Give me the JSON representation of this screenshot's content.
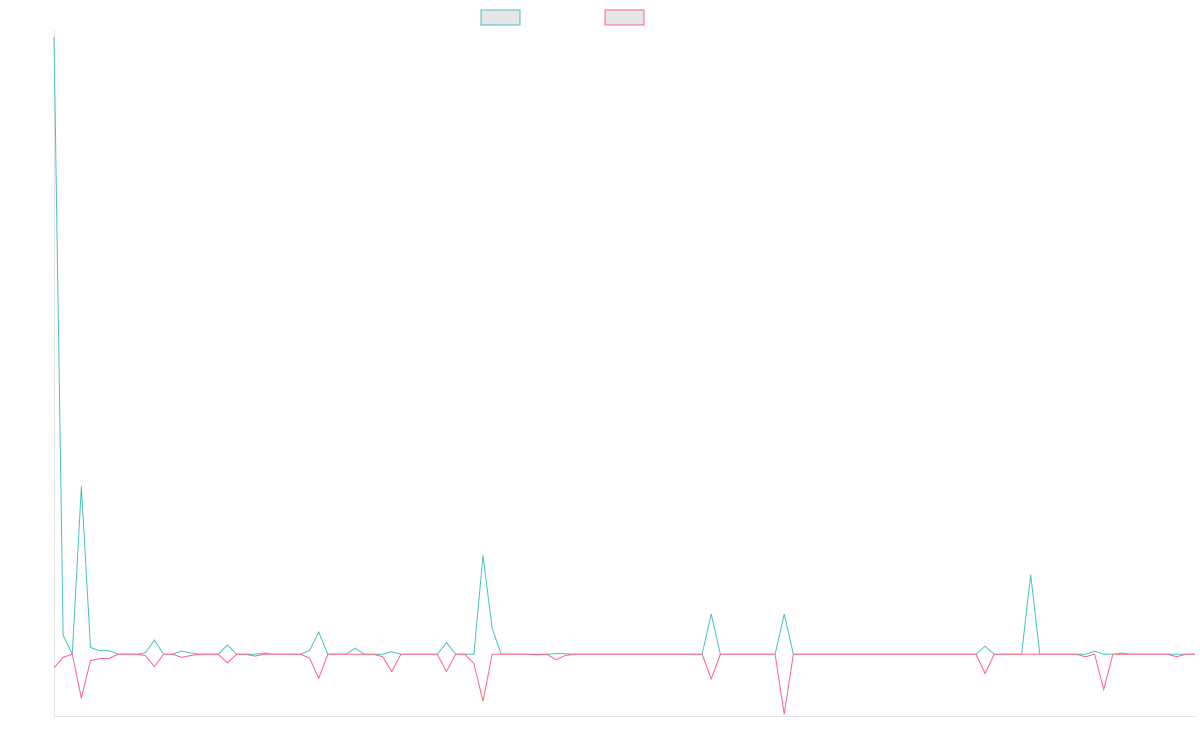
{
  "colors": {
    "series_1": "#4bc0c0",
    "series_2": "#ff6384",
    "legend_fill": "#e6e6e6",
    "axis": "#e4e4e4",
    "background": "#ffffff"
  },
  "legend": {
    "placement": "top-center"
  },
  "chart_data": {
    "type": "line",
    "title": "",
    "xlabel": "",
    "ylabel": "",
    "grid": false,
    "x": [
      0,
      1,
      2,
      3,
      4,
      5,
      6,
      7,
      8,
      9,
      10,
      11,
      12,
      13,
      14,
      15,
      16,
      17,
      18,
      19,
      20,
      21,
      22,
      23,
      24,
      25,
      26,
      27,
      28,
      29,
      30,
      31,
      32,
      33,
      34,
      35,
      36,
      37,
      38,
      39,
      40,
      41,
      42,
      43,
      44,
      45,
      46,
      47,
      48,
      49,
      50,
      51,
      52,
      53,
      54,
      55,
      56,
      57,
      58,
      59,
      60,
      61,
      62,
      63,
      64,
      65,
      66,
      67,
      68,
      69,
      70,
      71,
      72,
      73,
      74,
      75,
      76,
      77,
      78,
      79,
      80,
      81,
      82,
      83,
      84,
      85,
      86,
      87,
      88,
      89,
      90,
      91,
      92,
      93,
      94,
      95,
      96,
      97,
      98,
      99,
      100,
      101,
      102,
      103,
      104,
      105,
      106,
      107,
      108,
      109,
      110,
      111,
      112,
      113,
      114,
      115,
      116,
      117,
      118,
      119,
      120,
      121,
      122,
      123,
      124,
      125
    ],
    "ylim": [
      -100,
      1000
    ],
    "series": [
      {
        "color": "#4bc0c0",
        "values": [
          1000,
          31,
          0,
          272,
          11,
          6,
          6,
          0,
          0,
          0,
          2,
          23,
          0,
          0,
          5,
          2,
          0,
          0,
          0,
          15,
          0,
          0,
          0,
          2,
          0,
          0,
          0,
          0,
          6,
          36,
          0,
          0,
          0,
          10,
          0,
          0,
          0,
          4,
          0,
          0,
          0,
          0,
          0,
          19,
          0,
          0,
          0,
          160,
          42,
          0,
          0,
          0,
          0,
          0,
          0,
          1,
          1,
          0,
          0,
          0,
          0,
          0,
          0,
          0,
          0,
          0,
          0,
          0,
          0,
          0,
          0,
          0,
          65,
          0,
          0,
          0,
          0,
          0,
          0,
          0,
          65,
          0,
          0,
          0,
          0,
          0,
          0,
          0,
          0,
          0,
          0,
          0,
          0,
          0,
          0,
          0,
          0,
          0,
          0,
          0,
          0,
          0,
          13,
          0,
          0,
          0,
          0,
          129,
          0,
          0,
          0,
          0,
          0,
          0,
          5,
          0,
          0,
          2,
          0,
          0,
          0,
          0,
          0,
          0,
          0,
          0
        ]
      },
      {
        "color": "#ff6384",
        "values": [
          -22,
          -5,
          0,
          -71,
          -10,
          -7,
          -7,
          0,
          0,
          0,
          -2,
          -20,
          0,
          0,
          -5,
          -2,
          0,
          0,
          0,
          -14,
          0,
          0,
          -3,
          0,
          0,
          0,
          0,
          0,
          -6,
          -39,
          0,
          0,
          0,
          0,
          0,
          0,
          -4,
          -28,
          0,
          0,
          0,
          0,
          0,
          -28,
          0,
          0,
          -15,
          -76,
          0,
          0,
          0,
          0,
          0,
          -1,
          0,
          -9,
          -2,
          0,
          0,
          0,
          0,
          0,
          0,
          0,
          0,
          0,
          0,
          0,
          0,
          0,
          0,
          0,
          -40,
          0,
          0,
          0,
          0,
          0,
          0,
          0,
          -97,
          0,
          0,
          0,
          0,
          0,
          0,
          0,
          0,
          0,
          0,
          0,
          0,
          0,
          0,
          0,
          0,
          0,
          0,
          0,
          0,
          0,
          -31,
          0,
          0,
          0,
          0,
          0,
          0,
          0,
          0,
          0,
          0,
          -4,
          0,
          -57,
          0,
          0,
          0,
          0,
          0,
          0,
          0,
          -4,
          0,
          0
        ]
      }
    ]
  }
}
